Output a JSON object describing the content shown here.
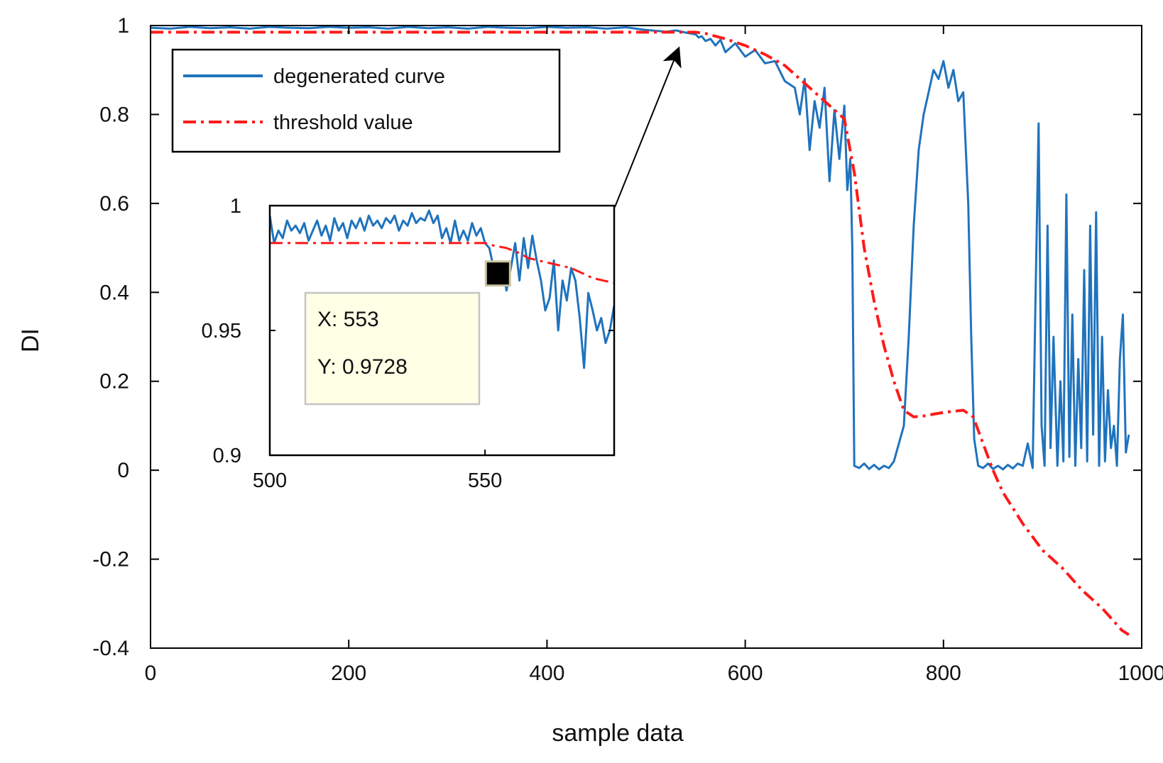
{
  "chart_data": {
    "type": "line",
    "xlabel": "sample data",
    "ylabel": "DI",
    "xlim": [
      0,
      1000
    ],
    "ylim": [
      -0.4,
      1
    ],
    "x_ticks": [
      0,
      200,
      400,
      600,
      800,
      1000
    ],
    "x_tick_labels": [
      "0",
      "200",
      "400",
      "600",
      "800",
      "1000"
    ],
    "y_ticks": [
      -0.4,
      -0.2,
      0,
      0.2,
      0.4,
      0.6,
      0.8,
      1
    ],
    "y_tick_labels": [
      "-0.4",
      "-0.2",
      "0",
      "0.2",
      "0.4",
      "0.6",
      "0.8",
      "1"
    ],
    "grid": false,
    "legend_position": "top-left",
    "colors": {
      "degenerated": "#1f73bd",
      "threshold": "#ff1a1a"
    },
    "series": [
      {
        "name": "degenerated curve",
        "style": "solid",
        "x": [
          0,
          20,
          40,
          60,
          80,
          100,
          120,
          140,
          160,
          180,
          200,
          220,
          240,
          260,
          280,
          300,
          320,
          340,
          360,
          380,
          400,
          420,
          440,
          460,
          480,
          500,
          510,
          520,
          530,
          540,
          550,
          553,
          556,
          560,
          565,
          570,
          575,
          580,
          590,
          600,
          610,
          620,
          630,
          640,
          650,
          655,
          660,
          665,
          670,
          675,
          680,
          685,
          690,
          695,
          700,
          703,
          706,
          708,
          710,
          715,
          720,
          725,
          730,
          735,
          740,
          745,
          750,
          755,
          760,
          765,
          770,
          775,
          780,
          785,
          790,
          795,
          800,
          805,
          810,
          815,
          820,
          825,
          828,
          831,
          835,
          840,
          845,
          850,
          855,
          860,
          865,
          870,
          875,
          880,
          885,
          890,
          893,
          896,
          899,
          902,
          905,
          908,
          911,
          915,
          918,
          921,
          924,
          927,
          930,
          933,
          936,
          939,
          942,
          945,
          948,
          951,
          954,
          957,
          960,
          963,
          966,
          969,
          972,
          975,
          978,
          981,
          984,
          987
        ],
        "y": [
          0.995,
          0.993,
          0.997,
          0.994,
          0.996,
          0.993,
          0.997,
          0.995,
          0.994,
          0.997,
          0.995,
          0.996,
          0.993,
          0.997,
          0.994,
          0.996,
          0.993,
          0.997,
          0.995,
          0.994,
          0.997,
          0.995,
          0.996,
          0.993,
          0.996,
          0.99,
          0.988,
          0.986,
          0.989,
          0.984,
          0.98,
          0.973,
          0.976,
          0.965,
          0.97,
          0.955,
          0.968,
          0.94,
          0.96,
          0.93,
          0.945,
          0.915,
          0.92,
          0.875,
          0.86,
          0.8,
          0.88,
          0.72,
          0.83,
          0.77,
          0.86,
          0.65,
          0.81,
          0.7,
          0.82,
          0.63,
          0.7,
          0.5,
          0.01,
          0.005,
          0.015,
          0.003,
          0.012,
          0.002,
          0.01,
          0.005,
          0.02,
          0.06,
          0.1,
          0.3,
          0.55,
          0.72,
          0.8,
          0.85,
          0.9,
          0.88,
          0.92,
          0.86,
          0.9,
          0.83,
          0.85,
          0.6,
          0.3,
          0.07,
          0.01,
          0.005,
          0.015,
          0.003,
          0.01,
          0.002,
          0.012,
          0.004,
          0.015,
          0.01,
          0.06,
          0.005,
          0.4,
          0.78,
          0.1,
          0.01,
          0.55,
          0.05,
          0.3,
          0.01,
          0.2,
          0.02,
          0.62,
          0.03,
          0.35,
          0.01,
          0.25,
          0.05,
          0.45,
          0.02,
          0.55,
          0.08,
          0.58,
          0.01,
          0.3,
          0.02,
          0.18,
          0.05,
          0.1,
          0.01,
          0.25,
          0.35,
          0.04,
          0.08
        ]
      },
      {
        "name": "threshold value",
        "style": "dash-dot",
        "x": [
          0,
          100,
          200,
          300,
          400,
          500,
          550,
          560,
          580,
          600,
          620,
          640,
          660,
          680,
          700,
          710,
          720,
          730,
          740,
          750,
          760,
          770,
          780,
          800,
          820,
          830,
          840,
          850,
          860,
          880,
          900,
          920,
          940,
          960,
          980,
          987
        ],
        "y": [
          0.985,
          0.985,
          0.985,
          0.985,
          0.985,
          0.985,
          0.985,
          0.982,
          0.97,
          0.955,
          0.935,
          0.91,
          0.87,
          0.83,
          0.79,
          0.67,
          0.5,
          0.38,
          0.28,
          0.2,
          0.135,
          0.12,
          0.122,
          0.13,
          0.135,
          0.12,
          0.06,
          0.0,
          -0.05,
          -0.12,
          -0.18,
          -0.22,
          -0.27,
          -0.31,
          -0.36,
          -0.37
        ]
      }
    ],
    "inset": {
      "xlim": [
        500,
        580
      ],
      "ylim": [
        0.9,
        1
      ],
      "x_ticks": [
        500,
        550
      ],
      "x_tick_labels": [
        "500",
        "550"
      ],
      "y_ticks": [
        0.9,
        0.95,
        1
      ],
      "y_tick_labels": [
        "0.9",
        "0.95",
        "1"
      ],
      "degenerated": {
        "x": [
          500,
          501,
          502,
          503,
          504,
          505,
          506,
          507,
          508,
          509,
          510,
          511,
          512,
          513,
          514,
          515,
          516,
          517,
          518,
          519,
          520,
          521,
          522,
          523,
          524,
          525,
          526,
          527,
          528,
          529,
          530,
          531,
          532,
          533,
          534,
          535,
          536,
          537,
          538,
          539,
          540,
          541,
          542,
          543,
          544,
          545,
          546,
          547,
          548,
          549,
          550,
          551,
          552,
          553,
          554,
          555,
          556,
          557,
          558,
          559,
          560,
          561,
          562,
          563,
          564,
          565,
          566,
          567,
          568,
          569,
          570,
          571,
          572,
          573,
          574,
          575,
          576,
          577,
          578,
          579,
          580
        ],
        "y": [
          0.996,
          0.985,
          0.99,
          0.987,
          0.994,
          0.99,
          0.992,
          0.989,
          0.993,
          0.986,
          0.99,
          0.994,
          0.988,
          0.992,
          0.986,
          0.995,
          0.99,
          0.993,
          0.987,
          0.994,
          0.991,
          0.995,
          0.99,
          0.996,
          0.992,
          0.994,
          0.991,
          0.995,
          0.993,
          0.996,
          0.99,
          0.994,
          0.992,
          0.997,
          0.993,
          0.995,
          0.994,
          0.998,
          0.993,
          0.996,
          0.987,
          0.991,
          0.985,
          0.994,
          0.986,
          0.99,
          0.986,
          0.993,
          0.988,
          0.991,
          0.985,
          0.983,
          0.975,
          0.973,
          0.976,
          0.966,
          0.975,
          0.985,
          0.97,
          0.987,
          0.975,
          0.988,
          0.978,
          0.97,
          0.958,
          0.963,
          0.978,
          0.95,
          0.97,
          0.962,
          0.975,
          0.97,
          0.955,
          0.935,
          0.965,
          0.958,
          0.95,
          0.955,
          0.945,
          0.95,
          0.96
        ]
      },
      "threshold": {
        "x": [
          500,
          510,
          520,
          530,
          540,
          550,
          552,
          555,
          558,
          560,
          565,
          570,
          575,
          580
        ],
        "y": [
          0.985,
          0.985,
          0.985,
          0.985,
          0.985,
          0.985,
          0.984,
          0.983,
          0.981,
          0.979,
          0.977,
          0.975,
          0.971,
          0.969
        ]
      }
    },
    "datatip": {
      "x_label": "X: 553",
      "y_label": "Y: 0.9728",
      "x": 553,
      "y": 0.9728
    }
  }
}
